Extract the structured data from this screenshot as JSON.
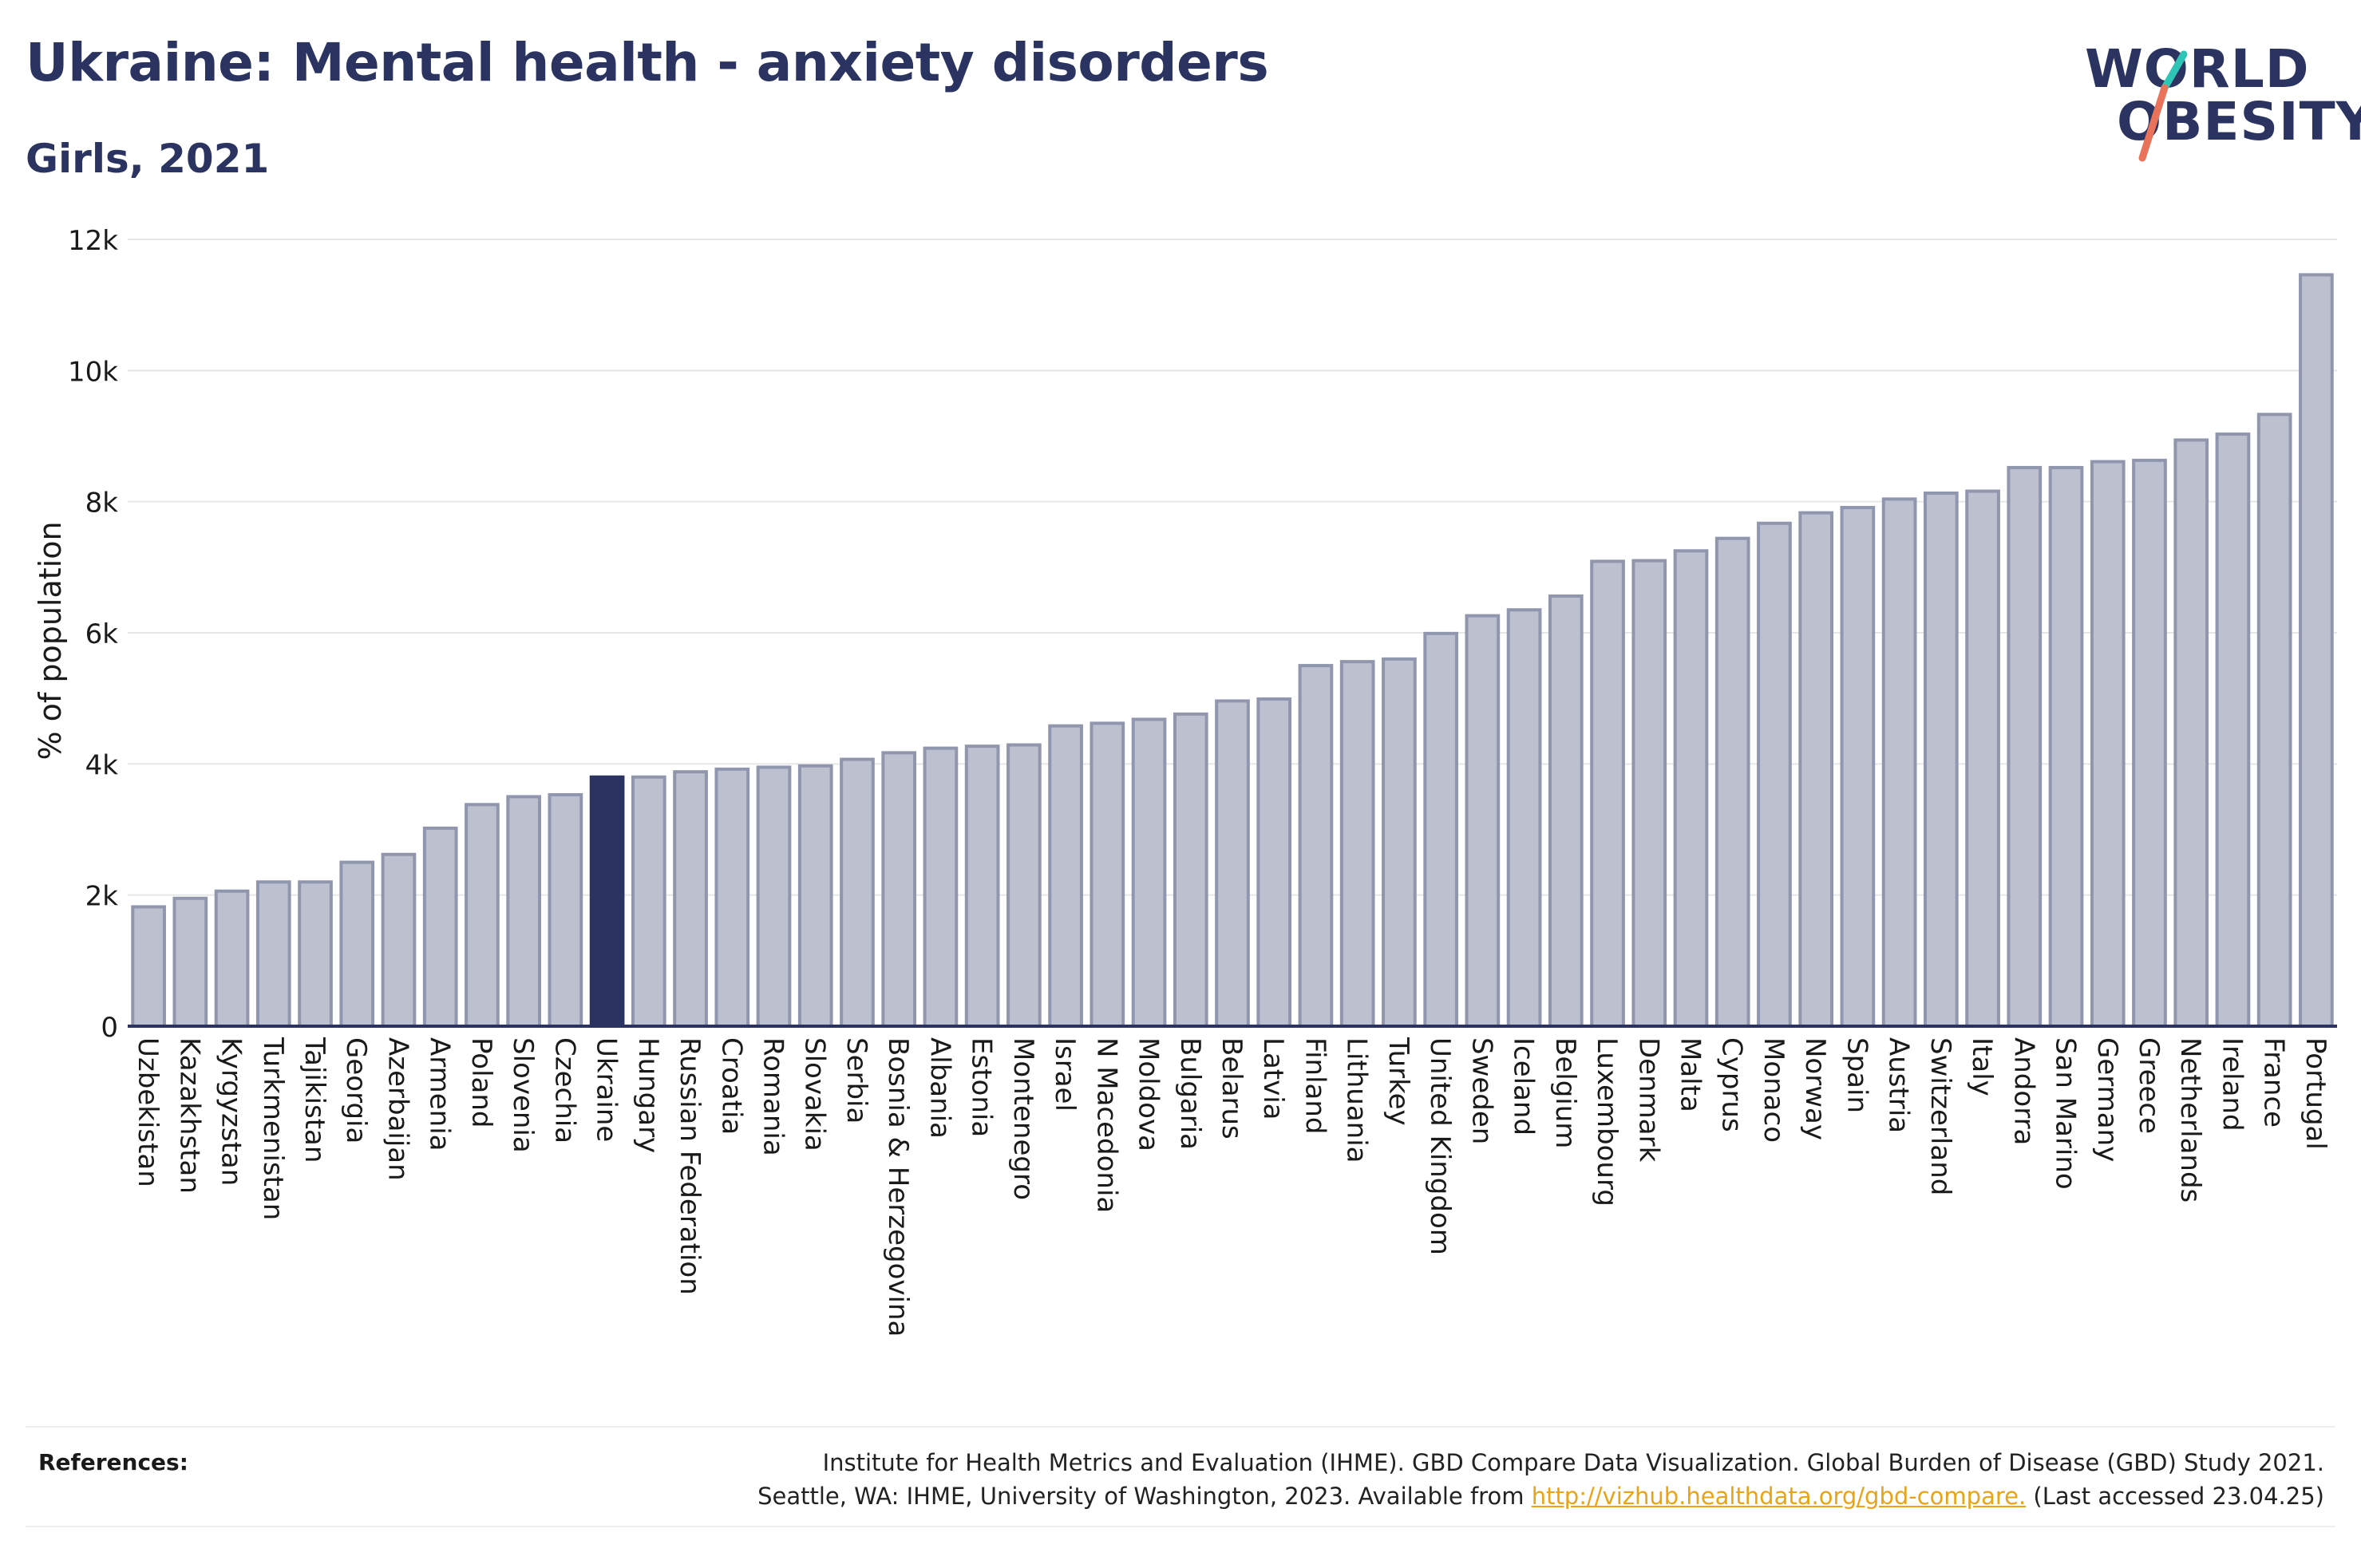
{
  "header": {
    "title": "Ukraine: Mental health - anxiety disorders",
    "subtitle": "Girls, 2021"
  },
  "logo": {
    "line1": "WORLD",
    "line2": "OBESITY",
    "accent_colors": [
      "#2ec4b6",
      "#e8735a"
    ]
  },
  "colors": {
    "highlight_bar": "#2b3461",
    "default_bar_fill": "#bcc0cf",
    "default_bar_stroke": "#9096ad",
    "axis": "#2b3461",
    "grid": "#e6e6e6",
    "title": "#2b3461"
  },
  "chart_data": {
    "type": "bar",
    "title": "Ukraine: Mental health - anxiety disorders",
    "subtitle": "Girls, 2021",
    "xlabel": "",
    "ylabel": "% of population",
    "ylim": [
      0,
      12000
    ],
    "yticks": [
      0,
      2000,
      4000,
      6000,
      8000,
      10000,
      12000
    ],
    "ytick_labels": [
      "0",
      "2k",
      "4k",
      "6k",
      "8k",
      "10k",
      "12k"
    ],
    "grid": true,
    "highlight": "Ukraine",
    "categories": [
      "Uzbekistan",
      "Kazakhstan",
      "Kyrgyzstan",
      "Turkmenistan",
      "Tajikistan",
      "Georgia",
      "Azerbaijan",
      "Armenia",
      "Poland",
      "Slovenia",
      "Czechia",
      "Ukraine",
      "Hungary",
      "Russian Federation",
      "Croatia",
      "Romania",
      "Slovakia",
      "Serbia",
      "Bosnia & Herzegovina",
      "Albania",
      "Estonia",
      "Montenegro",
      "Israel",
      "N Macedonia",
      "Moldova",
      "Bulgaria",
      "Belarus",
      "Latvia",
      "Finland",
      "Lithuania",
      "Turkey",
      "United Kingdom",
      "Sweden",
      "Iceland",
      "Belgium",
      "Luxembourg",
      "Denmark",
      "Malta",
      "Cyprus",
      "Monaco",
      "Norway",
      "Spain",
      "Austria",
      "Switzerland",
      "Italy",
      "Andorra",
      "San Marino",
      "Germany",
      "Greece",
      "Netherlands",
      "Ireland",
      "France",
      "Portugal"
    ],
    "values": [
      1820,
      1950,
      2060,
      2200,
      2200,
      2500,
      2620,
      3020,
      3380,
      3500,
      3530,
      3800,
      3800,
      3880,
      3920,
      3950,
      3970,
      4070,
      4170,
      4240,
      4270,
      4290,
      4580,
      4620,
      4680,
      4760,
      4960,
      4990,
      5500,
      5560,
      5600,
      5990,
      6260,
      6350,
      6560,
      7090,
      7100,
      7250,
      7440,
      7670,
      7830,
      7910,
      8040,
      8130,
      8160,
      8520,
      8520,
      8610,
      8630,
      8940,
      9030,
      9330,
      11460
    ]
  },
  "references": {
    "label": "References:",
    "line1": "Institute for Health Metrics and Evaluation (IHME). GBD Compare Data Visualization. Global Burden of Disease (GBD) Study 2021.",
    "line2_prefix": "Seattle, WA: IHME, University of Washington, 2023. Available from ",
    "link_text": "http://vizhub.healthdata.org/gbd-compare.",
    "line2_suffix": " (Last accessed 23.04.25)"
  }
}
